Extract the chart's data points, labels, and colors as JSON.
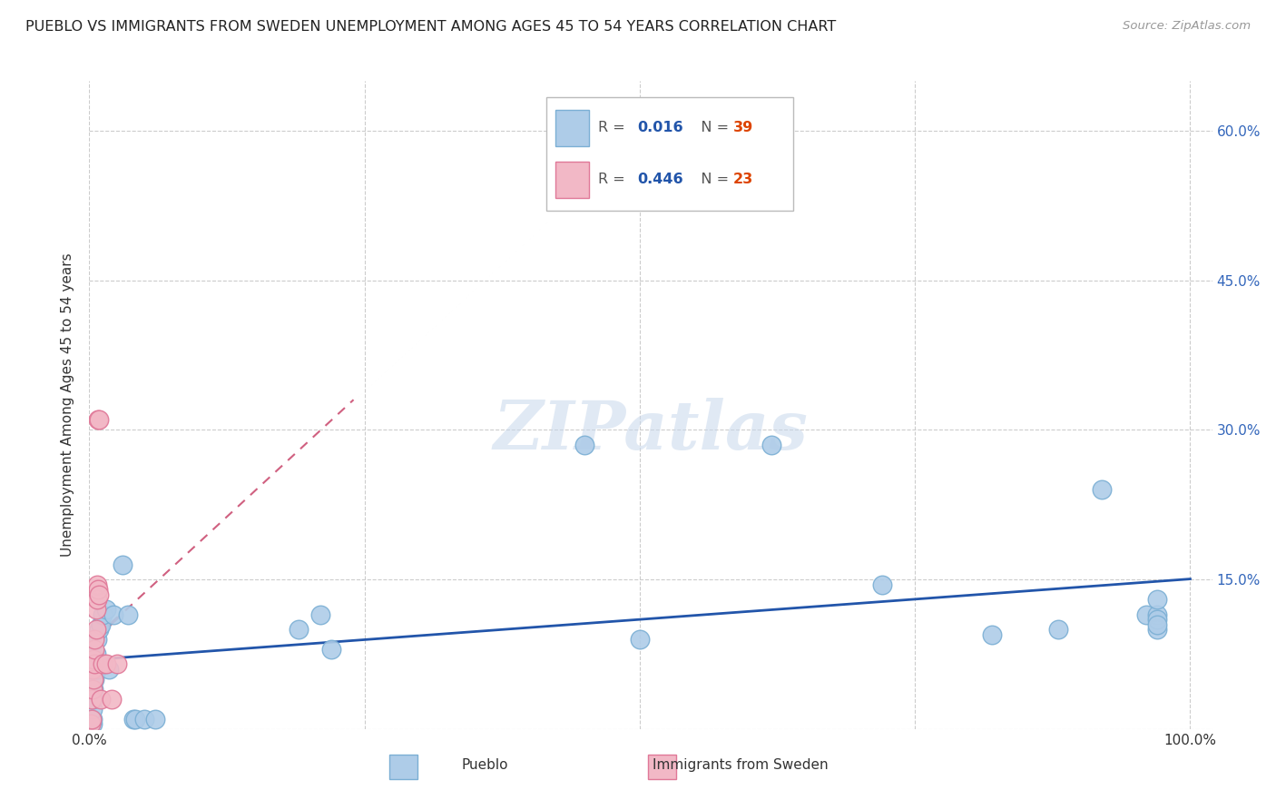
{
  "title": "PUEBLO VS IMMIGRANTS FROM SWEDEN UNEMPLOYMENT AMONG AGES 45 TO 54 YEARS CORRELATION CHART",
  "source": "Source: ZipAtlas.com",
  "ylabel": "Unemployment Among Ages 45 to 54 years",
  "xlim": [
    0.0,
    1.02
  ],
  "ylim": [
    0.0,
    0.65
  ],
  "xticks": [
    0.0,
    0.25,
    0.5,
    0.75,
    1.0
  ],
  "xtick_labels": [
    "0.0%",
    "",
    "",
    "",
    "100.0%"
  ],
  "yticks": [
    0.0,
    0.15,
    0.3,
    0.45,
    0.6
  ],
  "ytick_labels": [
    "",
    "15.0%",
    "30.0%",
    "45.0%",
    "60.0%"
  ],
  "watermark": "ZIPatlas",
  "pueblo_color": "#aecce8",
  "pueblo_edge": "#7bafd4",
  "sweden_color": "#f2b8c6",
  "sweden_edge": "#e07898",
  "pueblo_R": "0.016",
  "pueblo_N": "39",
  "sweden_R": "0.446",
  "sweden_N": "23",
  "pueblo_trend_color": "#2255aa",
  "sweden_trend_color": "#d06080",
  "background_color": "#ffffff",
  "grid_color": "#cccccc",
  "title_color": "#222222",
  "right_ytick_color": "#3366bb",
  "legend_R_color": "#2255aa",
  "legend_N_color": "#dd4400",
  "pueblo_scatter_x": [
    0.003,
    0.003,
    0.003,
    0.003,
    0.004,
    0.004,
    0.005,
    0.005,
    0.006,
    0.007,
    0.007,
    0.009,
    0.01,
    0.012,
    0.015,
    0.018,
    0.022,
    0.03,
    0.035,
    0.04,
    0.042,
    0.05,
    0.06,
    0.19,
    0.21,
    0.22,
    0.45,
    0.5,
    0.62,
    0.72,
    0.82,
    0.88,
    0.92,
    0.96,
    0.97,
    0.97,
    0.97,
    0.97,
    0.97
  ],
  "pueblo_scatter_y": [
    0.005,
    0.01,
    0.02,
    0.03,
    0.04,
    0.06,
    0.05,
    0.07,
    0.075,
    0.06,
    0.09,
    0.1,
    0.105,
    0.115,
    0.12,
    0.06,
    0.115,
    0.165,
    0.115,
    0.01,
    0.01,
    0.01,
    0.01,
    0.1,
    0.115,
    0.08,
    0.285,
    0.09,
    0.285,
    0.145,
    0.095,
    0.1,
    0.24,
    0.115,
    0.115,
    0.1,
    0.13,
    0.11,
    0.105
  ],
  "sweden_scatter_x": [
    0.001,
    0.002,
    0.002,
    0.003,
    0.003,
    0.004,
    0.004,
    0.005,
    0.005,
    0.005,
    0.006,
    0.006,
    0.007,
    0.007,
    0.008,
    0.008,
    0.009,
    0.009,
    0.01,
    0.012,
    0.015,
    0.02,
    0.025
  ],
  "sweden_scatter_y": [
    0.005,
    0.01,
    0.03,
    0.04,
    0.06,
    0.05,
    0.07,
    0.065,
    0.08,
    0.09,
    0.1,
    0.12,
    0.13,
    0.145,
    0.14,
    0.31,
    0.135,
    0.31,
    0.03,
    0.065,
    0.065,
    0.03,
    0.065
  ]
}
